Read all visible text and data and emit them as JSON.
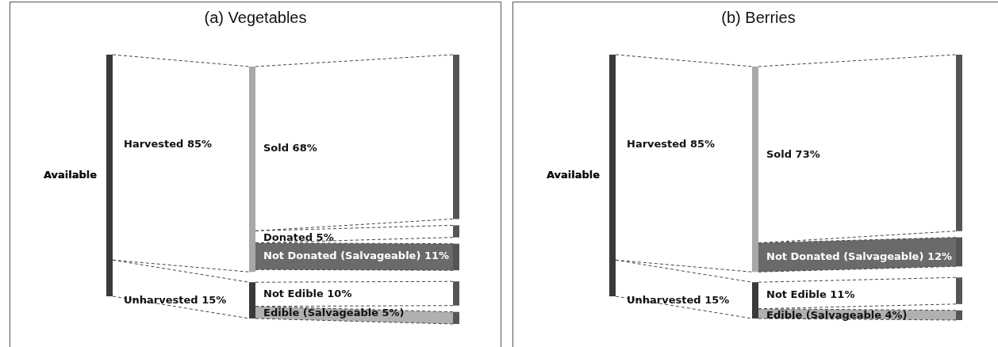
{
  "chart_data": [
    {
      "type": "other",
      "title": "(a) Vegetables",
      "categories": [
        "Available",
        "Harvested",
        "Unharvested",
        "Sold",
        "Donated",
        "Not Donated (Salvageable)",
        "Not Edible",
        "Edible (Salvageable"
      ],
      "values": [
        null,
        85,
        15,
        68,
        5,
        11,
        10,
        5
      ],
      "value_labels": [
        null,
        "85%",
        "15%",
        "68%",
        "5%",
        "11%",
        "10%",
        "5%)"
      ],
      "colors": [
        "#3a3a3a",
        "#a8a8a8",
        "#3a3a3a",
        "#ffffff",
        "#ffffff",
        "#6a6a6a",
        "#ffffff",
        "#b0b0b0"
      ]
    },
    {
      "type": "other",
      "title": "(b) Berries",
      "categories": [
        "Available",
        "Harvested",
        "Unharvested",
        "Sold",
        "Not Donated (Salvageable)",
        "Not Edible",
        "Edible (Salvageable"
      ],
      "values": [
        null,
        85,
        15,
        73,
        12,
        11,
        4
      ],
      "value_labels": [
        null,
        "85%",
        "15%",
        "73%",
        "12%",
        "11%",
        "4%)"
      ],
      "colors": [
        "#3a3a3a",
        "#a8a8a8",
        "#3a3a3a",
        "#ffffff",
        "#6a6a6a",
        "#ffffff",
        "#b0b0b0"
      ]
    }
  ]
}
